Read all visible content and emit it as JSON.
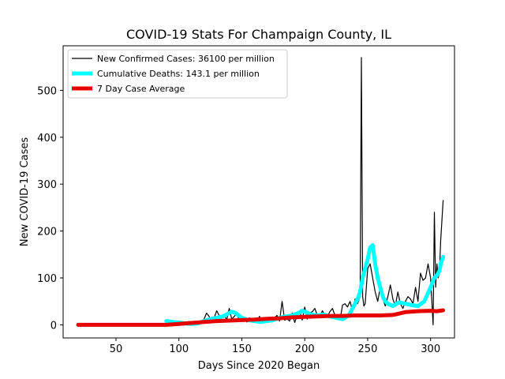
{
  "chart_data": {
    "type": "line",
    "title": "COVID-19 Stats For Champaign County, IL",
    "xlabel": "Days Since 2020 Began",
    "ylabel": "New COVID-19 Cases",
    "xlim": [
      8,
      319
    ],
    "ylim": [
      -28,
      595
    ],
    "xticks": [
      50,
      100,
      150,
      200,
      250,
      300
    ],
    "yticks": [
      0,
      100,
      200,
      300,
      400,
      500
    ],
    "grid": false,
    "legend": "top-left",
    "series": [
      {
        "name": "New Confirmed Cases: 36100 per million",
        "color": "#000000",
        "x": [
          90,
          92,
          94,
          96,
          98,
          100,
          102,
          104,
          106,
          108,
          110,
          112,
          114,
          116,
          118,
          120,
          122,
          124,
          126,
          128,
          130,
          132,
          134,
          136,
          138,
          140,
          142,
          144,
          146,
          148,
          150,
          152,
          154,
          156,
          158,
          160,
          162,
          164,
          166,
          168,
          170,
          172,
          174,
          176,
          178,
          180,
          182,
          184,
          186,
          188,
          190,
          192,
          194,
          196,
          198,
          200,
          202,
          204,
          206,
          208,
          210,
          212,
          214,
          216,
          218,
          220,
          222,
          224,
          226,
          228,
          230,
          232,
          234,
          236,
          238,
          240,
          242,
          244,
          245,
          246,
          247,
          248,
          250,
          252,
          254,
          256,
          258,
          260,
          262,
          264,
          266,
          268,
          270,
          272,
          274,
          276,
          278,
          280,
          282,
          284,
          286,
          288,
          290,
          292,
          294,
          296,
          298,
          300,
          302,
          303,
          304,
          305,
          306,
          307,
          308,
          310
        ],
        "values": [
          10,
          3,
          5,
          8,
          4,
          6,
          2,
          5,
          3,
          7,
          4,
          1,
          6,
          8,
          3,
          12,
          25,
          18,
          8,
          15,
          30,
          20,
          14,
          22,
          10,
          35,
          12,
          18,
          25,
          8,
          10,
          14,
          6,
          15,
          9,
          5,
          7,
          18,
          8,
          12,
          5,
          10,
          6,
          15,
          20,
          8,
          50,
          10,
          12,
          8,
          25,
          5,
          20,
          30,
          10,
          38,
          12,
          25,
          28,
          35,
          20,
          15,
          30,
          22,
          18,
          28,
          35,
          20,
          15,
          10,
          42,
          45,
          38,
          50,
          30,
          55,
          45,
          60,
          570,
          60,
          40,
          45,
          120,
          130,
          100,
          70,
          50,
          80,
          55,
          40,
          60,
          85,
          55,
          40,
          70,
          45,
          35,
          50,
          60,
          55,
          45,
          80,
          50,
          110,
          95,
          100,
          130,
          100,
          0,
          240,
          80,
          130,
          100,
          110,
          180,
          265
        ]
      },
      {
        "name": "Cumulative Deaths: 143.1 per million",
        "color": "#00ffff",
        "x": [
          90,
          95,
          100,
          105,
          110,
          115,
          120,
          125,
          130,
          135,
          140,
          142,
          145,
          150,
          155,
          160,
          165,
          170,
          175,
          180,
          185,
          190,
          195,
          198,
          200,
          205,
          210,
          215,
          220,
          225,
          230,
          235,
          238,
          240,
          242,
          244,
          246,
          248,
          250,
          252,
          254,
          256,
          258,
          260,
          262,
          264,
          266,
          270,
          275,
          280,
          285,
          290,
          295,
          300,
          303,
          305,
          307,
          308,
          310
        ],
        "values": [
          8,
          6,
          5,
          3,
          2,
          3,
          8,
          12,
          15,
          18,
          25,
          28,
          25,
          15,
          10,
          8,
          6,
          8,
          10,
          15,
          18,
          20,
          25,
          30,
          28,
          22,
          20,
          22,
          18,
          15,
          12,
          20,
          35,
          45,
          55,
          70,
          100,
          120,
          140,
          165,
          170,
          130,
          100,
          80,
          60,
          50,
          45,
          40,
          48,
          45,
          42,
          40,
          50,
          80,
          100,
          105,
          115,
          130,
          145
        ]
      },
      {
        "name": "7 Day Case Average",
        "color": "#e60000",
        "x": [
          20,
          40,
          60,
          80,
          90,
          100,
          110,
          120,
          130,
          140,
          150,
          160,
          170,
          180,
          190,
          200,
          210,
          220,
          230,
          240,
          250,
          260,
          270,
          280,
          290,
          300,
          305,
          310
        ],
        "values": [
          0,
          0,
          0,
          0,
          0,
          2,
          4,
          6,
          8,
          9,
          10,
          11,
          13,
          14,
          16,
          17,
          18,
          19,
          19,
          20,
          20,
          20,
          21,
          27,
          29,
          30,
          29,
          31
        ]
      }
    ]
  }
}
